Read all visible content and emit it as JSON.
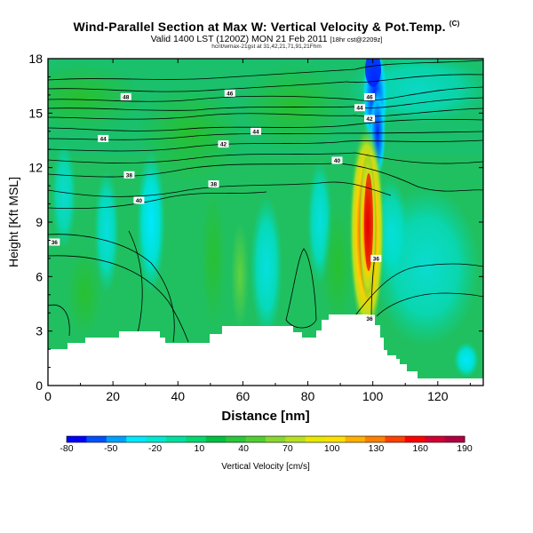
{
  "title": "Wind-Parallel Section at Max W: Vertical Velocity & Pot.Temp.",
  "copyright": "(C)",
  "subtitle_main": "Valid 1400 LST (1200Z) MON 21 Feb 2011",
  "subtitle_note": "[18hr cst@2209z]",
  "subtitle_line3": "hcrit/wmax-21gst at 31,42,21,71,91,21Fhm",
  "colors": {
    "terrain": "#ffffff",
    "frame": "#000000",
    "contour": "#000000",
    "background": "#ffffff"
  },
  "chart_data": {
    "type": "heatmap",
    "title": "Wind-Parallel Section at Max W: Vertical Velocity & Pot.Temp.",
    "xlabel": "Distance [nm]",
    "ylabel": "Height [Kft MSL]",
    "xlim": [
      0,
      134
    ],
    "ylim": [
      0,
      18
    ],
    "xticks": [
      0,
      20,
      40,
      60,
      80,
      100,
      120
    ],
    "yticks": [
      0,
      3,
      6,
      9,
      12,
      15,
      18
    ],
    "colorbar": {
      "label": "Vertical Velocity [cm/s]",
      "ticks": [
        -80,
        -50,
        -20,
        10,
        40,
        70,
        100,
        130,
        160,
        190
      ],
      "colors": [
        "#0000ff",
        "#0050ff",
        "#00a0ff",
        "#00e8ff",
        "#00e8d0",
        "#00e0a0",
        "#00d870",
        "#00c040",
        "#28c83a",
        "#50d030",
        "#88d830",
        "#b8e020",
        "#e8e800",
        "#ffe000",
        "#ffb000",
        "#ff8000",
        "#ff4000",
        "#ff0000",
        "#d00030",
        "#b00040"
      ]
    },
    "isentrope_labels": [
      {
        "text": "48",
        "x": 24,
        "y": 15.9
      },
      {
        "text": "46",
        "x": 56,
        "y": 16.1
      },
      {
        "text": "46",
        "x": 99,
        "y": 15.9
      },
      {
        "text": "44",
        "x": 96,
        "y": 15.3
      },
      {
        "text": "42",
        "x": 99,
        "y": 14.7
      },
      {
        "text": "44",
        "x": 17,
        "y": 13.6
      },
      {
        "text": "44",
        "x": 64,
        "y": 14.0
      },
      {
        "text": "42",
        "x": 54,
        "y": 13.3
      },
      {
        "text": "40",
        "x": 89,
        "y": 12.4
      },
      {
        "text": "38",
        "x": 25,
        "y": 11.6
      },
      {
        "text": "38",
        "x": 51,
        "y": 11.1
      },
      {
        "text": "40",
        "x": 28,
        "y": 10.2
      },
      {
        "text": "36",
        "x": 2,
        "y": 7.9
      },
      {
        "text": "36",
        "x": 101,
        "y": 7.0
      },
      {
        "text": "36",
        "x": 99,
        "y": 3.7
      }
    ]
  }
}
